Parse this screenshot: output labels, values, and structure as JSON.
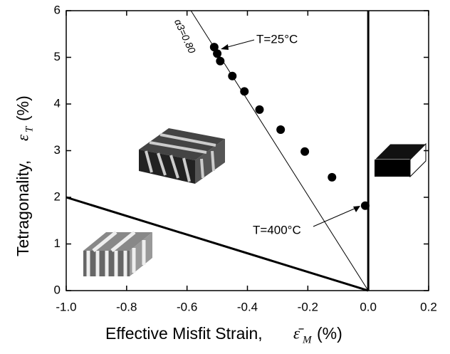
{
  "chart_data": {
    "type": "scatter",
    "xlabel": "Effective Misfit Strain,",
    "xlabel_symbol": "ε̄",
    "xlabel_sub": "M",
    "xlabel_unit": "(%)",
    "ylabel": "Tetragonality,",
    "ylabel_symbol": "ε",
    "ylabel_sub": "T",
    "ylabel_unit": "(%)",
    "x": [
      -0.51,
      -0.5,
      -0.49,
      -0.45,
      -0.41,
      -0.36,
      -0.29,
      -0.21,
      -0.12,
      -0.01
    ],
    "values": [
      5.22,
      5.08,
      4.92,
      4.6,
      4.27,
      3.88,
      3.45,
      2.98,
      2.43,
      1.82
    ],
    "color": "#000000",
    "lines": [
      {
        "x": [
          -1.0,
          0.0
        ],
        "y": [
          2.0,
          0.0
        ],
        "width": 3
      },
      {
        "x": [
          0.0,
          0.0
        ],
        "y": [
          0.0,
          6.0
        ],
        "width": 3
      },
      {
        "x": [
          0.0,
          -0.587
        ],
        "y": [
          0.0,
          6.0
        ],
        "width": 1
      }
    ],
    "annotations": [
      "T=25°C",
      "T=400°C",
      "α3=0.80"
    ],
    "xlim": [
      -1.0,
      0.2
    ],
    "xticks": [
      {
        "value": -1.0,
        "label": "-1.0"
      },
      -0.8,
      -0.6,
      -0.4,
      -0.2,
      {
        "value": 0.0,
        "label": "0.0"
      },
      0.2
    ],
    "ylim": [
      0,
      6
    ],
    "yticks": [
      0,
      1,
      2,
      3,
      4,
      5,
      6
    ]
  }
}
